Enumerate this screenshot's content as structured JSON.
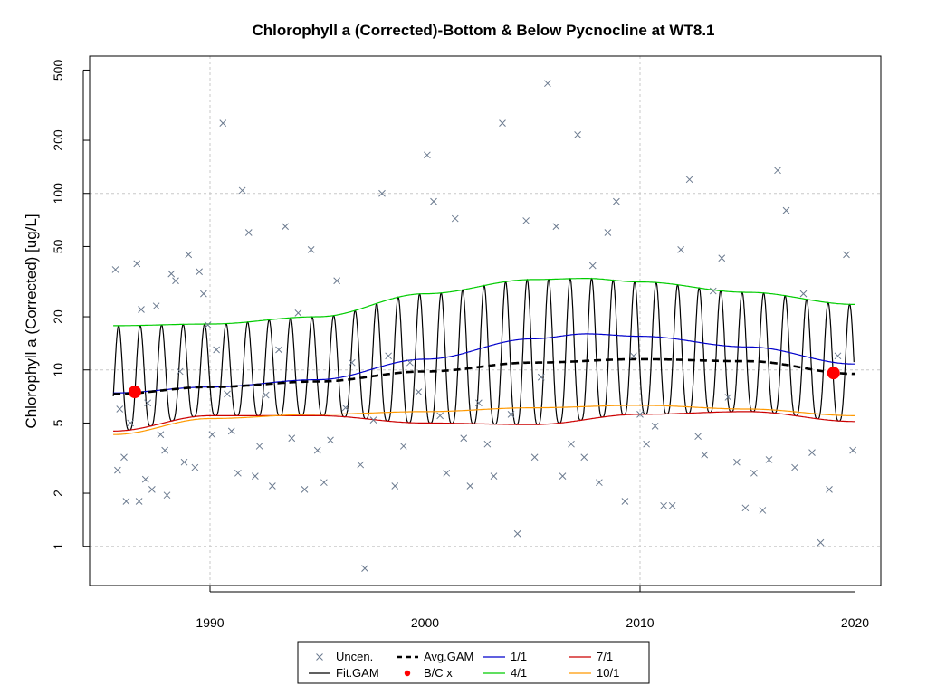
{
  "chart_data": {
    "type": "scatter",
    "title": "Chlorophyll a (Corrected)-Bottom & Below Pycnocline at WT8.1",
    "xlabel": "",
    "ylabel": "Chlorophyll a (Corrected) [ug/L]",
    "y_scale": "log",
    "xlim": [
      1984.4,
      2021.2
    ],
    "ylim": [
      0.6,
      600
    ],
    "x_ticks": [
      1990,
      2000,
      2010,
      2020
    ],
    "y_ticks": [
      1,
      2,
      5,
      10,
      20,
      50,
      100,
      200,
      500
    ],
    "grid": true,
    "legend_position": "bottom-center",
    "colors": {
      "uncensored": "#6b7a8f",
      "fit_gam": "#000000",
      "avg_gam": "#000000",
      "bc": "#ff0000",
      "jan1": "#0000cc",
      "apr1": "#00cc00",
      "jul1": "#cc0000",
      "oct1": "#ff9900",
      "grid": "#c8c8c8"
    },
    "legend": [
      {
        "label": "Uncen.",
        "symbol": "x"
      },
      {
        "label": "Avg.GAM",
        "symbol": "dashed"
      },
      {
        "label": "1/1",
        "symbol": "line"
      },
      {
        "label": "7/1",
        "symbol": "line"
      },
      {
        "label": "Fit.GAM",
        "symbol": "line"
      },
      {
        "label": "B/C x",
        "symbol": "dot"
      },
      {
        "label": "4/1",
        "symbol": "line"
      },
      {
        "label": "10/1",
        "symbol": "line"
      }
    ],
    "series": [
      {
        "name": "1/1",
        "x": [
          1985.5,
          1990,
          1995,
          2000,
          2005,
          2007.5,
          2010,
          2015,
          2020
        ],
        "values": [
          7.4,
          8.0,
          8.8,
          11.5,
          15,
          16,
          15.5,
          13.5,
          10.8
        ]
      },
      {
        "name": "4/1",
        "x": [
          1985.5,
          1990,
          1995,
          2000,
          2005,
          2007.5,
          2010,
          2015,
          2020
        ],
        "values": [
          17.8,
          18.2,
          20,
          27,
          32.5,
          33,
          31.5,
          27.5,
          23.5
        ]
      },
      {
        "name": "7/1",
        "x": [
          1985.5,
          1990,
          1995,
          2000,
          2005,
          2010,
          2015,
          2020
        ],
        "values": [
          4.5,
          5.5,
          5.5,
          5.0,
          4.9,
          5.6,
          5.8,
          5.1
        ]
      },
      {
        "name": "10/1",
        "x": [
          1985.5,
          1990,
          1995,
          2000,
          2005,
          2010,
          2015,
          2020
        ],
        "values": [
          4.3,
          5.3,
          5.6,
          5.8,
          6.1,
          6.3,
          6.0,
          5.5
        ]
      },
      {
        "name": "Avg.GAM",
        "x": [
          1985.5,
          1990,
          1995,
          2000,
          2005,
          2010,
          2015,
          2020
        ],
        "values": [
          7.3,
          8.0,
          8.6,
          9.8,
          11.0,
          11.5,
          11.2,
          9.5
        ]
      },
      {
        "name": "B/C x",
        "x": [
          1986.5,
          2019.0
        ],
        "values": [
          7.5,
          9.6
        ]
      },
      {
        "name": "Uncen.",
        "x": [
          1985.6,
          1985.7,
          1985.8,
          1986.0,
          1986.1,
          1986.3,
          1986.6,
          1986.7,
          1986.8,
          1987.0,
          1987.1,
          1987.3,
          1987.5,
          1987.7,
          1987.9,
          1988.0,
          1988.2,
          1988.4,
          1988.6,
          1988.8,
          1989.0,
          1989.3,
          1989.5,
          1989.7,
          1989.9,
          1990.1,
          1990.3,
          1990.6,
          1990.8,
          1991.0,
          1991.3,
          1991.5,
          1991.8,
          1992.1,
          1992.3,
          1992.6,
          1992.9,
          1993.2,
          1993.5,
          1993.8,
          1994.1,
          1994.4,
          1994.7,
          1995.0,
          1995.3,
          1995.6,
          1995.9,
          1996.3,
          1996.6,
          1997.0,
          1997.2,
          1997.6,
          1998.0,
          1998.3,
          1998.6,
          1999.0,
          1999.3,
          1999.7,
          2000.1,
          2000.4,
          2000.7,
          2001.0,
          2001.4,
          2001.8,
          2002.1,
          2002.5,
          2002.9,
          2003.2,
          2003.6,
          2004.0,
          2004.3,
          2004.7,
          2005.1,
          2005.4,
          2005.7,
          2006.1,
          2006.4,
          2006.8,
          2007.1,
          2007.4,
          2007.8,
          2008.1,
          2008.5,
          2008.9,
          2009.3,
          2009.7,
          2010.0,
          2010.3,
          2010.7,
          2011.1,
          2011.5,
          2011.9,
          2012.3,
          2012.7,
          2013.0,
          2013.4,
          2013.8,
          2014.1,
          2014.5,
          2014.9,
          2015.3,
          2015.7,
          2016.0,
          2016.4,
          2016.8,
          2017.2,
          2017.6,
          2018.0,
          2018.4,
          2018.8,
          2019.2,
          2019.6,
          2019.9
        ],
        "values": [
          37,
          2.7,
          6,
          3.2,
          1.8,
          5,
          40,
          1.8,
          22,
          2.4,
          6.5,
          2.1,
          23,
          4.3,
          3.5,
          1.95,
          35,
          32,
          9.8,
          3,
          45,
          2.8,
          36,
          27,
          18,
          4.3,
          13,
          250,
          7.3,
          4.5,
          2.6,
          104,
          60,
          2.5,
          3.7,
          7.2,
          2.2,
          13,
          65,
          4.1,
          21,
          2.1,
          48,
          3.5,
          2.3,
          4,
          32,
          6.1,
          11,
          2.9,
          0.75,
          5.2,
          100,
          12,
          2.2,
          3.7,
          11,
          7.5,
          165,
          90,
          5.5,
          2.6,
          72,
          4.1,
          2.2,
          6.5,
          3.8,
          2.5,
          250,
          5.6,
          1.18,
          70,
          3.2,
          9.1,
          420,
          65,
          2.5,
          3.8,
          215,
          3.2,
          39,
          2.3,
          60,
          90,
          1.8,
          12,
          5.6,
          3.8,
          4.8,
          1.7,
          1.7,
          48,
          120,
          4.2,
          3.3,
          28,
          43,
          7,
          3,
          1.65,
          2.6,
          1.6,
          3.1,
          135,
          80,
          2.8,
          27,
          3.4,
          1.05,
          2.1,
          12,
          45,
          3.5
        ]
      }
    ]
  }
}
